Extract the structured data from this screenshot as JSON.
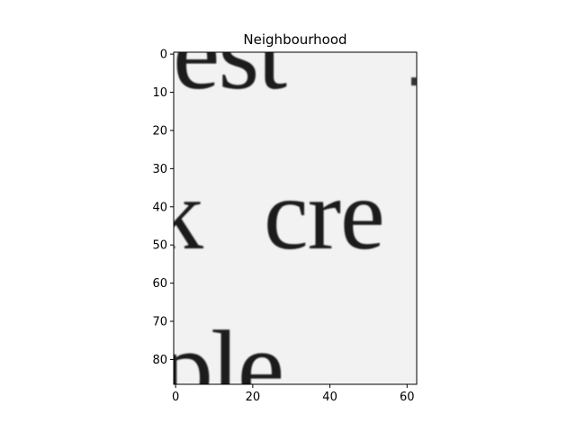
{
  "chart_data": {
    "type": "heatmap",
    "title": "Neighbourhood",
    "xlabel": "",
    "ylabel": "",
    "colormap": "gray",
    "xlim": [
      -0.5,
      62.5
    ],
    "ylim": [
      86.5,
      -0.5
    ],
    "xticks": [
      0,
      20,
      40,
      60
    ],
    "yticks": [
      0,
      10,
      20,
      30,
      40,
      50,
      60,
      70,
      80
    ],
    "grid": false,
    "image_content": "grayscale crop of a printed page showing word fragments",
    "word_fragments": [
      "est",
      "cre",
      "ple"
    ]
  },
  "colors": {
    "background": "#ffffff",
    "image_paper": "#f2f2f2",
    "ink": "#1a1a1a",
    "axes": "#000000"
  }
}
